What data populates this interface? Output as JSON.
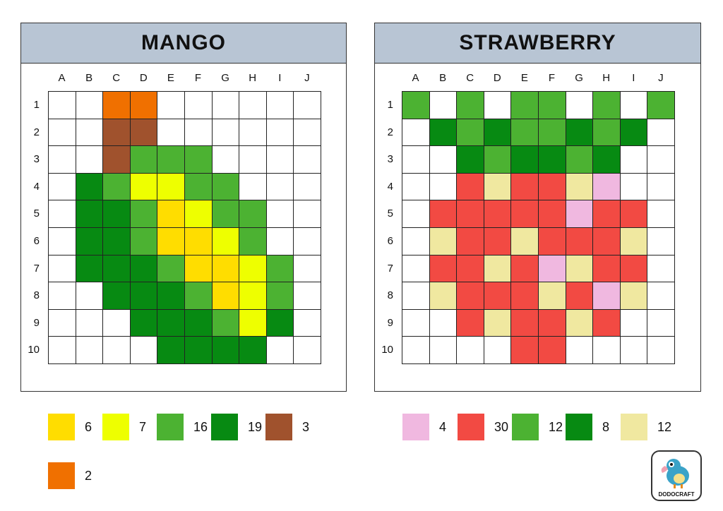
{
  "palette": {
    "W": "#ffffff",
    "Y1": "#ffdd00",
    "Y2": "#eeff00",
    "LG": "#4cb232",
    "DG": "#078a12",
    "BR": "#a0522d",
    "OR": "#f07000",
    "PK": "#f0b8e0",
    "RD": "#f24a43",
    "BE": "#f0e8a0"
  },
  "columns": [
    "A",
    "B",
    "C",
    "D",
    "E",
    "F",
    "G",
    "H",
    "I",
    "J"
  ],
  "rows": [
    "1",
    "2",
    "3",
    "4",
    "5",
    "6",
    "7",
    "8",
    "9",
    "10"
  ],
  "puzzles": [
    {
      "title": "MANGO",
      "grid": [
        [
          "W",
          "W",
          "OR",
          "OR",
          "W",
          "W",
          "W",
          "W",
          "W",
          "W"
        ],
        [
          "W",
          "W",
          "BR",
          "BR",
          "W",
          "W",
          "W",
          "W",
          "W",
          "W"
        ],
        [
          "W",
          "W",
          "BR",
          "LG",
          "LG",
          "LG",
          "W",
          "W",
          "W",
          "W"
        ],
        [
          "W",
          "DG",
          "LG",
          "Y2",
          "Y2",
          "LG",
          "LG",
          "W",
          "W",
          "W"
        ],
        [
          "W",
          "DG",
          "DG",
          "LG",
          "Y1",
          "Y2",
          "LG",
          "LG",
          "W",
          "W"
        ],
        [
          "W",
          "DG",
          "DG",
          "LG",
          "Y1",
          "Y1",
          "Y2",
          "LG",
          "W",
          "W"
        ],
        [
          "W",
          "DG",
          "DG",
          "DG",
          "LG",
          "Y1",
          "Y1",
          "Y2",
          "LG",
          "W"
        ],
        [
          "W",
          "W",
          "DG",
          "DG",
          "DG",
          "LG",
          "Y1",
          "Y2",
          "LG",
          "W"
        ],
        [
          "W",
          "W",
          "W",
          "DG",
          "DG",
          "DG",
          "LG",
          "Y2",
          "DG",
          "W"
        ],
        [
          "W",
          "W",
          "W",
          "W",
          "DG",
          "DG",
          "DG",
          "DG",
          "W",
          "W"
        ]
      ],
      "legend": [
        {
          "color": "Y1",
          "count": "6"
        },
        {
          "color": "Y2",
          "count": "7"
        },
        {
          "color": "LG",
          "count": "16"
        },
        {
          "color": "DG",
          "count": "19"
        },
        {
          "color": "BR",
          "count": "3"
        },
        {
          "color": "OR",
          "count": "2"
        }
      ]
    },
    {
      "title": "STRAWBERRY",
      "grid": [
        [
          "LG",
          "W",
          "LG",
          "W",
          "LG",
          "LG",
          "W",
          "LG",
          "W",
          "LG"
        ],
        [
          "W",
          "DG",
          "LG",
          "DG",
          "LG",
          "LG",
          "DG",
          "LG",
          "DG",
          "W"
        ],
        [
          "W",
          "W",
          "DG",
          "LG",
          "DG",
          "DG",
          "LG",
          "DG",
          "W",
          "W"
        ],
        [
          "W",
          "W",
          "RD",
          "BE",
          "RD",
          "RD",
          "BE",
          "PK",
          "W",
          "W"
        ],
        [
          "W",
          "RD",
          "RD",
          "RD",
          "RD",
          "RD",
          "PK",
          "RD",
          "RD",
          "W"
        ],
        [
          "W",
          "BE",
          "RD",
          "RD",
          "BE",
          "RD",
          "RD",
          "RD",
          "BE",
          "W"
        ],
        [
          "W",
          "RD",
          "RD",
          "BE",
          "RD",
          "PK",
          "BE",
          "RD",
          "RD",
          "W"
        ],
        [
          "W",
          "BE",
          "RD",
          "RD",
          "RD",
          "BE",
          "RD",
          "PK",
          "BE",
          "W"
        ],
        [
          "W",
          "W",
          "RD",
          "BE",
          "RD",
          "RD",
          "BE",
          "RD",
          "W",
          "W"
        ],
        [
          "W",
          "W",
          "W",
          "W",
          "RD",
          "RD",
          "W",
          "W",
          "W",
          "W"
        ]
      ],
      "legend": [
        {
          "color": "PK",
          "count": "4"
        },
        {
          "color": "RD",
          "count": "30"
        },
        {
          "color": "LG",
          "count": "12"
        },
        {
          "color": "DG",
          "count": "8"
        },
        {
          "color": "BE",
          "count": "12"
        }
      ]
    }
  ],
  "logo": {
    "text": "DODOCRAFT"
  }
}
